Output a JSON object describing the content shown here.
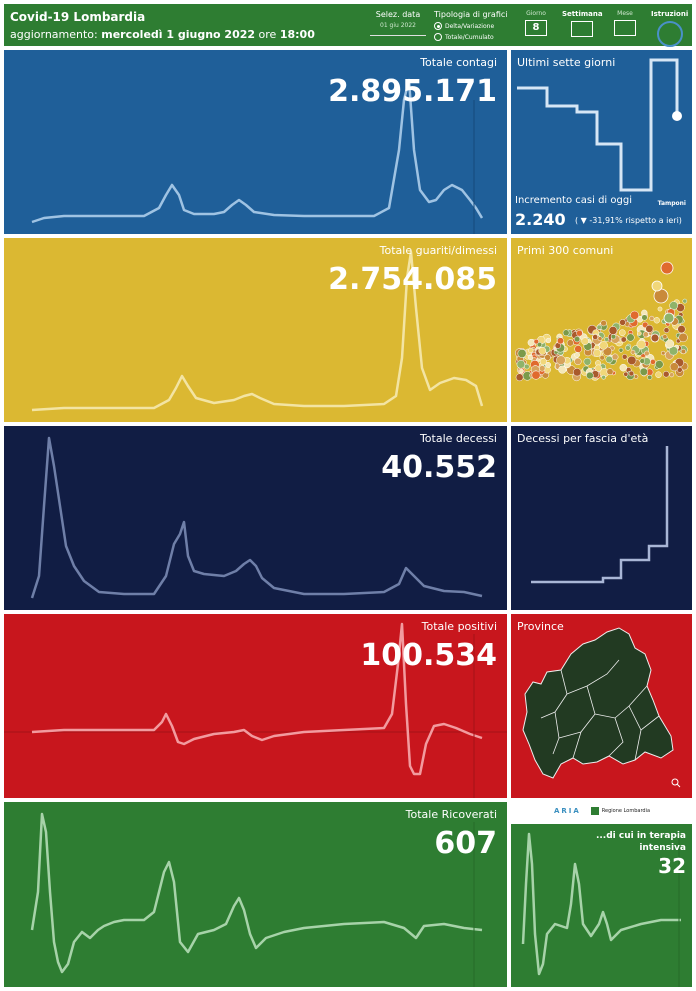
{
  "header": {
    "title": "Covid-19 Lombardia",
    "update_prefix": "aggiornamento:",
    "update_date": "mercoledì 1 giugno 2022",
    "update_mid": "ore",
    "update_time": "18:00",
    "date_selector_label": "Selez. data",
    "date_selector_value": "01 giu 2022",
    "chart_type_label": "Tipologia di grafici",
    "chart_type_options": [
      "Delta/Variazione",
      "Totale/Cumulato"
    ],
    "chart_type_selected": "Delta/Variazione",
    "tabs": {
      "giorno": "Giorno",
      "giorno_value": "8",
      "settimana": "Settimana",
      "mese": "Mese",
      "istruzioni": "Istruzioni"
    }
  },
  "panels": {
    "contagi": {
      "label": "Totale contagi",
      "value": "2.895.171",
      "color": "#1f5f99"
    },
    "guariti": {
      "label": "Totale guariti/dimessi",
      "value": "2.754.085",
      "color": "#dbb832"
    },
    "decessi": {
      "label": "Totale decessi",
      "value": "40.552",
      "color": "#111d44"
    },
    "positivi": {
      "label": "Totale positivi",
      "value": "100.534",
      "color": "#c8161d"
    },
    "ricoverati": {
      "label": "Totale Ricoverati",
      "value": "607",
      "color": "#2e7d32"
    }
  },
  "side": {
    "sette_giorni": {
      "label": "Ultimi sette giorni",
      "incr_label": "Incremento casi di oggi",
      "incr_value": "2.240",
      "incr_delta": "( ▼ -31,91% rispetto a ieri)",
      "tamponi": "Tamponi"
    },
    "comuni": {
      "label": "Primi 300 comuni"
    },
    "fascia": {
      "label": "Decessi per fascia d'età"
    },
    "province": {
      "label": "Province"
    },
    "terapia": {
      "label": "...di cui in terapia intensiva",
      "value": "32"
    }
  },
  "logos": {
    "aria": "ARIA",
    "regione": "Regione Lombardia"
  }
}
